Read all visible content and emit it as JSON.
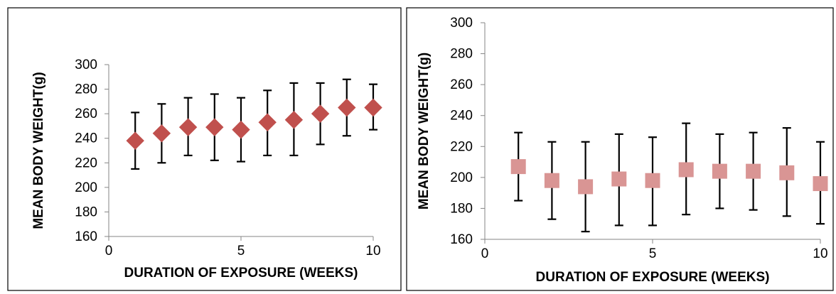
{
  "chart_data": [
    {
      "type": "scatter",
      "xlabel": "DURATION OF EXPOSURE (WEEKS)",
      "ylabel": "MEAN BODY WEIGHT(g)",
      "xlim": [
        0,
        10
      ],
      "ylim": [
        160,
        300
      ],
      "x_ticks": [
        0,
        5,
        10
      ],
      "y_ticks": [
        160,
        180,
        200,
        220,
        240,
        260,
        280,
        300
      ],
      "grid": false,
      "legend": "none",
      "marker": "diamond",
      "color": "#C0504D",
      "x": [
        1,
        2,
        3,
        4,
        5,
        6,
        7,
        8,
        9,
        10
      ],
      "y": [
        238,
        244,
        249,
        249,
        247,
        253,
        255,
        260,
        265,
        265
      ],
      "error_low": [
        215,
        220,
        226,
        222,
        221,
        226,
        226,
        235,
        242,
        247
      ],
      "error_high": [
        261,
        268,
        273,
        276,
        273,
        279,
        285,
        285,
        288,
        284
      ]
    },
    {
      "type": "scatter",
      "xlabel": "DURATION OF EXPOSURE (WEEKS)",
      "ylabel": "MEAN BODY WEIGHT(g)",
      "xlim": [
        0,
        10
      ],
      "ylim": [
        160,
        300
      ],
      "x_ticks": [
        0,
        5,
        10
      ],
      "y_ticks": [
        160,
        180,
        200,
        220,
        240,
        260,
        280,
        300
      ],
      "grid": false,
      "legend": "none",
      "marker": "square",
      "color": "#D99594",
      "x": [
        1,
        2,
        3,
        4,
        5,
        6,
        7,
        8,
        9,
        10
      ],
      "y": [
        207,
        198,
        194,
        199,
        198,
        205,
        204,
        204,
        203,
        196
      ],
      "error_low": [
        185,
        173,
        165,
        169,
        169,
        176,
        180,
        179,
        175,
        170
      ],
      "error_high": [
        229,
        223,
        223,
        228,
        226,
        235,
        228,
        229,
        232,
        223
      ]
    }
  ]
}
